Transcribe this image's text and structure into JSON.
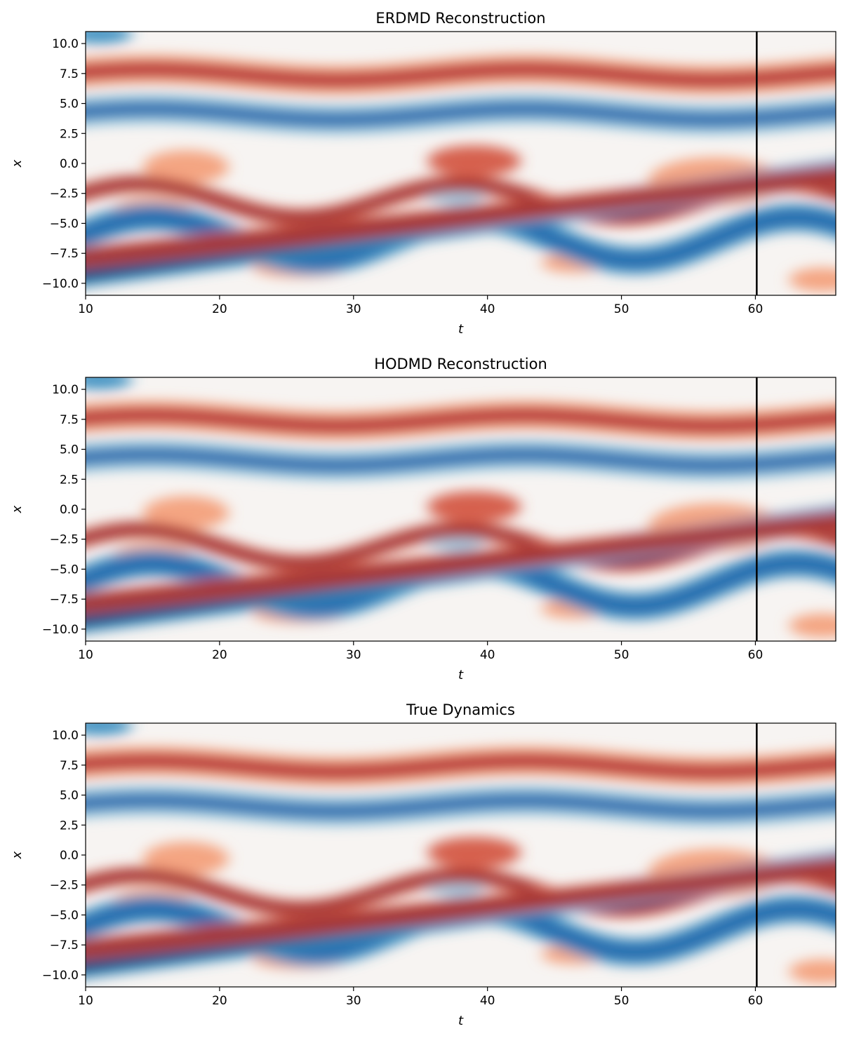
{
  "figure": {
    "colormap": "RdBu_r",
    "vline_color": "#000000",
    "axis_color": "#000000"
  },
  "chart_data": [
    {
      "type": "heatmap",
      "title": "ERDMD Reconstruction",
      "xlabel": "t",
      "ylabel": "x",
      "xlim": [
        10,
        66
      ],
      "ylim": [
        -11,
        11
      ],
      "xticks": [
        "10",
        "20",
        "30",
        "40",
        "50",
        "60"
      ],
      "yticks": [
        "10.0",
        "7.5",
        "5.0",
        "2.5",
        "0.0",
        "−2.5",
        "−5.0",
        "−7.5",
        "−10.0"
      ],
      "vline_t": 60.1,
      "grid": false
    },
    {
      "type": "heatmap",
      "title": "HODMD Reconstruction",
      "xlabel": "t",
      "ylabel": "x",
      "xlim": [
        10,
        66
      ],
      "ylim": [
        -11,
        11
      ],
      "xticks": [
        "10",
        "20",
        "30",
        "40",
        "50",
        "60"
      ],
      "yticks": [
        "10.0",
        "7.5",
        "5.0",
        "2.5",
        "0.0",
        "−2.5",
        "−5.0",
        "−7.5",
        "−10.0"
      ],
      "vline_t": 60.1,
      "grid": false
    },
    {
      "type": "heatmap",
      "title": "True Dynamics",
      "xlabel": "t",
      "ylabel": "x",
      "xlim": [
        10,
        66
      ],
      "ylim": [
        -11,
        11
      ],
      "xticks": [
        "10",
        "20",
        "30",
        "40",
        "50",
        "60"
      ],
      "yticks": [
        "10.0",
        "7.5",
        "5.0",
        "2.5",
        "0.0",
        "−2.5",
        "−5.0",
        "−7.5",
        "−10.0"
      ],
      "vline_t": 60.1,
      "grid": false
    }
  ]
}
